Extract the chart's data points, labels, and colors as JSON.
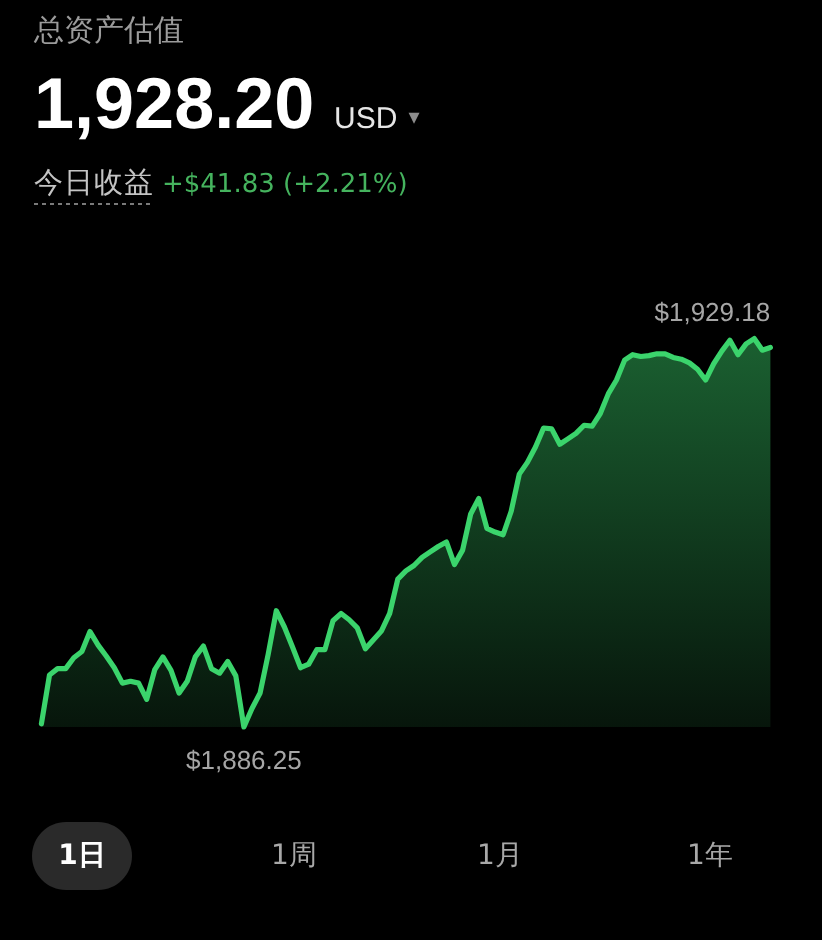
{
  "chart_data": {
    "type": "area",
    "title": "总资产估值",
    "categories": [
      null,
      null,
      null,
      null,
      null,
      null,
      null,
      null,
      null,
      null,
      null,
      null,
      null,
      null,
      null,
      null,
      null,
      null,
      null,
      null,
      null,
      null,
      null,
      null,
      null,
      null,
      null,
      null,
      null,
      null,
      null,
      null,
      null,
      null,
      null,
      null,
      null,
      null,
      null,
      null,
      null,
      null,
      null,
      null,
      null,
      null,
      null,
      null,
      null,
      null,
      null,
      null,
      null,
      null,
      null,
      null,
      null,
      null,
      null,
      null,
      null,
      null,
      null,
      null,
      null,
      null,
      null,
      null,
      null,
      null,
      null,
      null,
      null,
      null,
      null,
      null,
      null,
      null,
      null,
      null,
      null,
      null,
      null,
      null,
      null,
      null,
      null,
      null,
      null,
      null,
      null
    ],
    "values": [
      1886.6,
      1892.0,
      1892.7,
      1892.7,
      1893.9,
      1894.6,
      1896.8,
      1895.3,
      1894.1,
      1892.8,
      1891.1,
      1891.3,
      1891.1,
      1889.3,
      1892.6,
      1894.0,
      1892.5,
      1890.0,
      1891.3,
      1894.0,
      1895.2,
      1892.7,
      1892.2,
      1893.5,
      1891.9,
      1886.25,
      1888.3,
      1890.0,
      1894.3,
      1899.1,
      1897.3,
      1895.1,
      1892.8,
      1893.2,
      1894.8,
      1894.8,
      1898.0,
      1898.8,
      1898.1,
      1897.2,
      1894.9,
      1895.9,
      1896.9,
      1898.8,
      1902.6,
      1903.5,
      1904.1,
      1905.0,
      1905.6,
      1906.2,
      1906.7,
      1904.2,
      1905.8,
      1909.8,
      1911.5,
      1908.2,
      1907.8,
      1907.5,
      1910.1,
      1914.2,
      1915.5,
      1917.2,
      1919.3,
      1919.2,
      1917.5,
      1918.1,
      1918.7,
      1919.6,
      1919.5,
      1920.9,
      1923.1,
      1924.6,
      1926.8,
      1927.4,
      1927.2,
      1927.3,
      1927.5,
      1927.5,
      1927.1,
      1926.9,
      1926.5,
      1925.8,
      1924.6,
      1926.4,
      1927.8,
      1929.0,
      1927.4,
      1928.6,
      1929.18,
      1927.9,
      1928.2
    ],
    "value_labels": [
      null,
      null,
      null,
      null,
      null,
      null,
      null,
      null,
      null,
      null,
      null,
      null,
      null,
      null,
      null,
      null,
      null,
      null,
      null,
      null,
      null,
      null,
      null,
      null,
      null,
      "$1,886.25",
      null,
      null,
      null,
      null,
      null,
      null,
      null,
      null,
      null,
      null,
      null,
      null,
      null,
      null,
      null,
      null,
      null,
      null,
      null,
      null,
      null,
      null,
      null,
      null,
      null,
      null,
      null,
      null,
      null,
      null,
      null,
      null,
      null,
      null,
      null,
      null,
      null,
      null,
      null,
      null,
      null,
      null,
      null,
      null,
      null,
      null,
      null,
      null,
      null,
      null,
      null,
      null,
      null,
      null,
      null,
      null,
      null,
      null,
      null,
      null,
      null,
      null,
      "$1,929.18",
      null,
      null
    ],
    "color": "#3bd46c",
    "annotations": [
      "1,928.20",
      "USD",
      "▾",
      "今日收益",
      "+$41.83 (+2.21%)",
      "1日",
      "1周",
      "1月",
      "1年"
    ]
  }
}
